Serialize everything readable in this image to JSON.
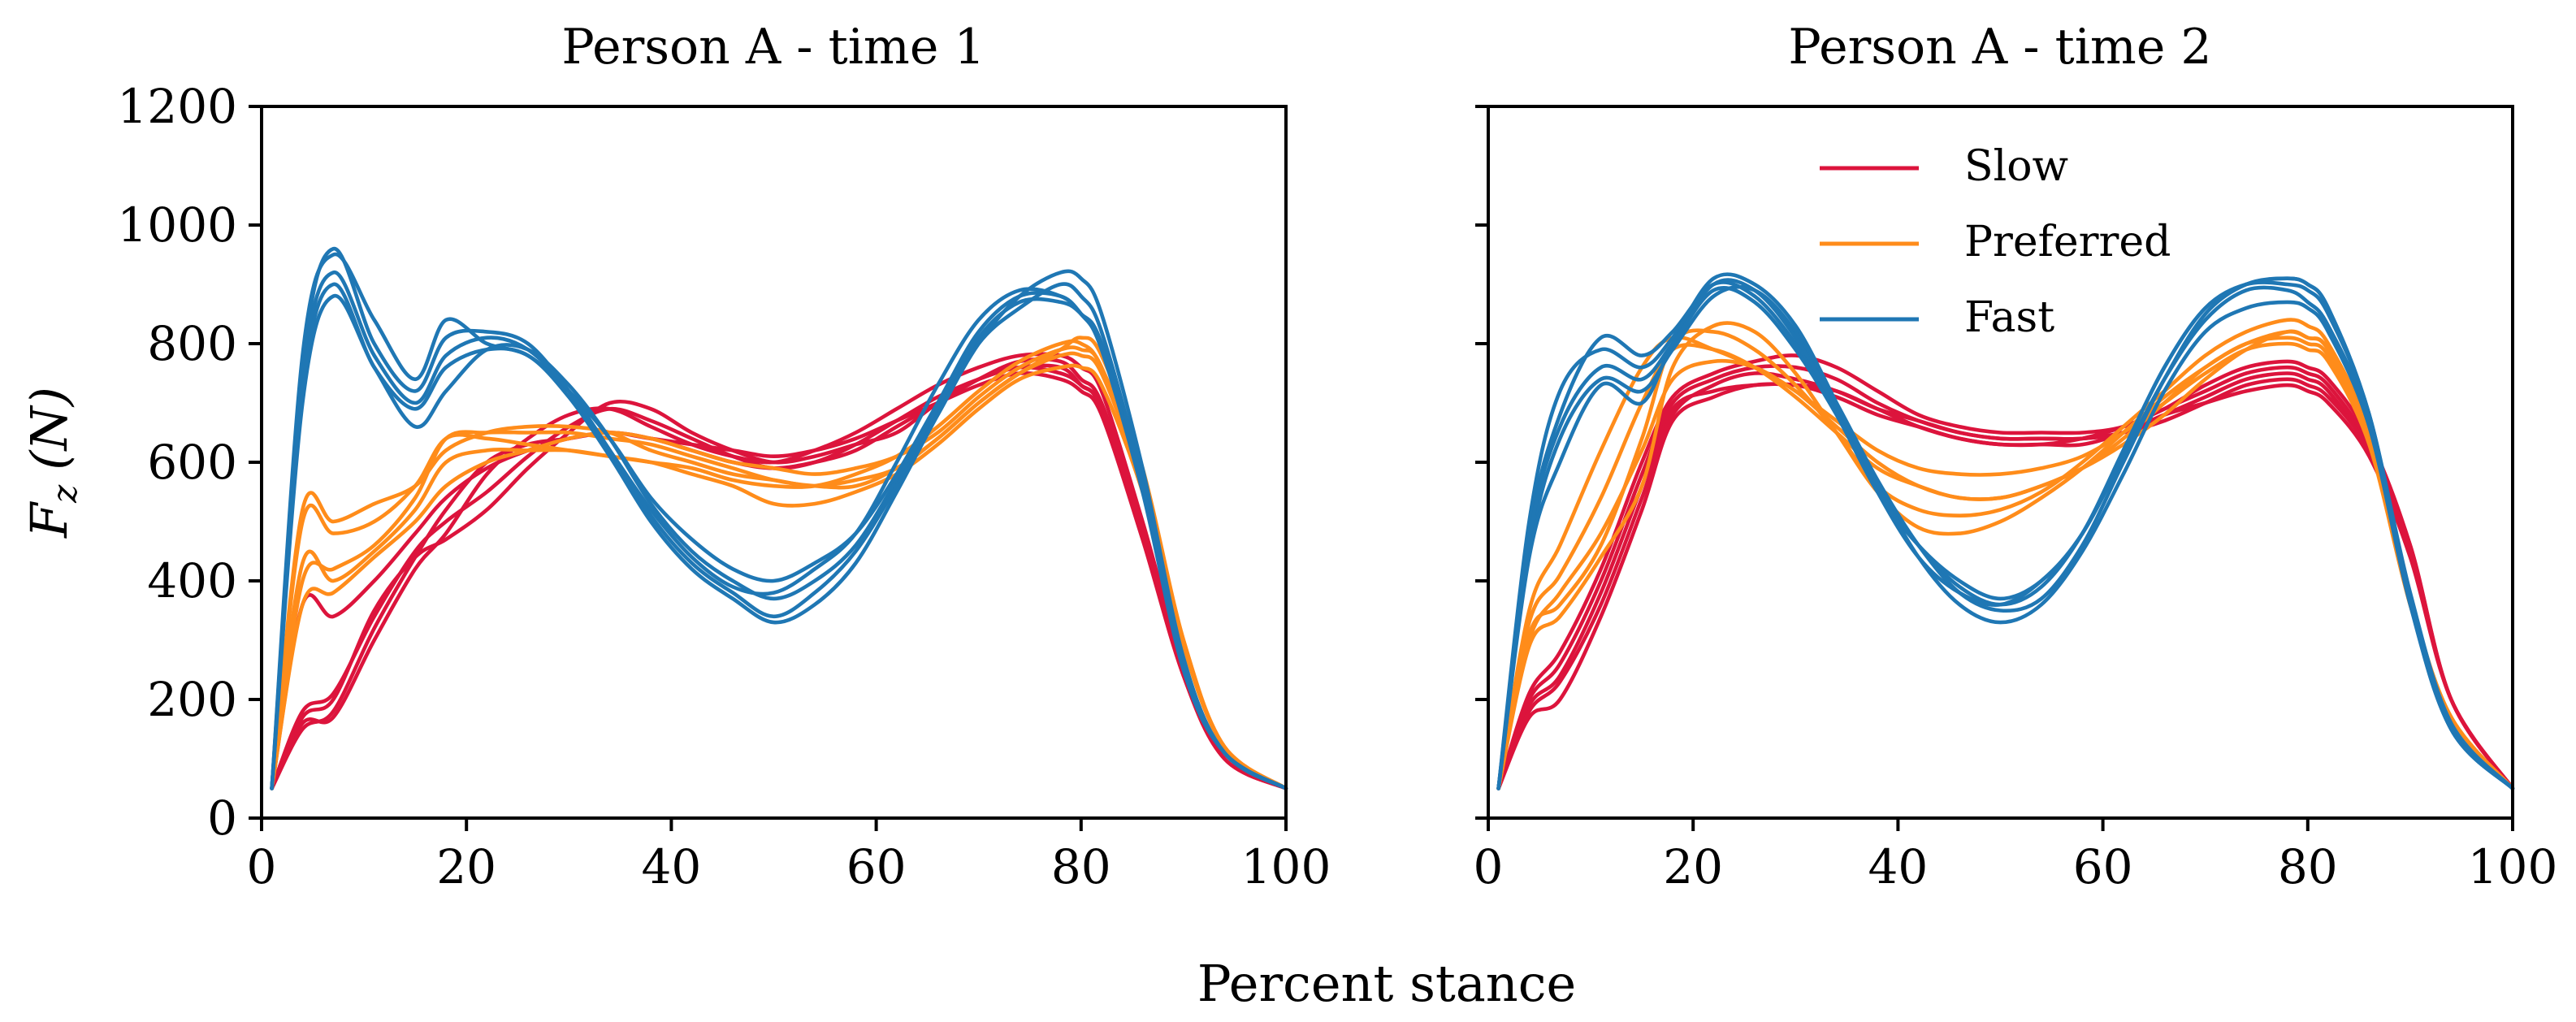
{
  "chart_data": {
    "type": "line",
    "xlabel": "Percent stance",
    "ylabel_symbol": "F",
    "ylabel_subscript": "z",
    "ylabel_unit": "(N)",
    "xlim": [
      0,
      100
    ],
    "ylim": [
      0,
      1200
    ],
    "xticks": [
      0,
      20,
      40,
      60,
      80,
      100
    ],
    "yticks": [
      0,
      200,
      400,
      600,
      800,
      1000,
      1200
    ],
    "x_grid": [
      1,
      4,
      7,
      11,
      15,
      18,
      22,
      26,
      30,
      34,
      38,
      42,
      46,
      50,
      54,
      58,
      62,
      66,
      70,
      74,
      78,
      80,
      82,
      86,
      90,
      94,
      100
    ],
    "legend": {
      "placement": "upper-center",
      "panel": 1,
      "entries": [
        {
          "label": "Slow",
          "color": "#dc143c"
        },
        {
          "label": "Preferred",
          "color": "#ff8c1a"
        },
        {
          "label": "Fast",
          "color": "#1f77b4"
        }
      ]
    },
    "panels": [
      {
        "title": "Person A - time 1",
        "series": [
          {
            "name": "Slow",
            "color": "#dc143c",
            "trials": [
              [
                50,
                160,
                170,
                300,
                420,
                480,
                580,
                640,
                680,
                690,
                660,
                630,
                610,
                600,
                620,
                650,
                690,
                730,
                760,
                780,
                780,
                760,
                720,
                500,
                260,
                110,
                50
              ],
              [
                50,
                150,
                180,
                320,
                440,
                520,
                600,
                630,
                640,
                650,
                640,
                630,
                620,
                610,
                620,
                640,
                670,
                700,
                730,
                750,
                740,
                720,
                680,
                470,
                240,
                100,
                50
              ],
              [
                50,
                170,
                200,
                350,
                440,
                470,
                520,
                590,
                650,
                700,
                690,
                650,
                620,
                600,
                610,
                630,
                650,
                700,
                740,
                760,
                760,
                730,
                690,
                480,
                250,
                110,
                50
              ],
              [
                50,
                360,
                340,
                400,
                480,
                540,
                590,
                620,
                640,
                650,
                640,
                620,
                600,
                590,
                600,
                620,
                660,
                700,
                740,
                770,
                770,
                740,
                700,
                490,
                250,
                110,
                50
              ],
              [
                50,
                180,
                210,
                340,
                450,
                500,
                550,
                610,
                660,
                690,
                670,
                640,
                610,
                590,
                600,
                630,
                670,
                710,
                740,
                760,
                750,
                730,
                690,
                480,
                240,
                100,
                50
              ]
            ]
          },
          {
            "name": "Preferred",
            "color": "#ff8c1a",
            "trials": [
              [
                50,
                500,
                480,
                500,
                560,
                640,
                640,
                630,
                620,
                610,
                600,
                590,
                570,
                560,
                560,
                580,
                610,
                660,
                720,
                770,
                800,
                800,
                760,
                580,
                300,
                120,
                50
              ],
              [
                50,
                400,
                420,
                460,
                540,
                640,
                650,
                650,
                650,
                640,
                630,
                610,
                590,
                570,
                560,
                560,
                590,
                640,
                700,
                750,
                790,
                810,
                780,
                590,
                300,
                120,
                50
              ],
              [
                50,
                430,
                400,
                450,
                520,
                600,
                620,
                620,
                620,
                610,
                600,
                580,
                560,
                530,
                530,
                550,
                580,
                630,
                690,
                740,
                760,
                760,
                730,
                550,
                290,
                120,
                50
              ],
              [
                50,
                360,
                380,
                440,
                500,
                560,
                600,
                620,
                640,
                650,
                640,
                620,
                600,
                590,
                580,
                590,
                610,
                650,
                710,
                760,
                790,
                790,
                760,
                560,
                290,
                120,
                50
              ],
              [
                50,
                520,
                500,
                530,
                560,
                620,
                650,
                660,
                660,
                650,
                620,
                600,
                580,
                570,
                560,
                570,
                590,
                640,
                700,
                750,
                780,
                780,
                750,
                560,
                290,
                120,
                50
              ]
            ]
          },
          {
            "name": "Fast",
            "color": "#1f77b4",
            "trials": [
              [
                50,
                780,
                950,
                840,
                740,
                840,
                800,
                780,
                720,
                640,
                540,
                470,
                420,
                400,
                430,
                480,
                580,
                700,
                820,
                880,
                880,
                850,
                800,
                560,
                260,
                110,
                50
              ],
              [
                50,
                760,
                960,
                800,
                720,
                810,
                820,
                800,
                720,
                620,
                520,
                440,
                390,
                380,
                420,
                480,
                600,
                730,
                840,
                890,
                880,
                850,
                790,
                550,
                250,
                110,
                50
              ],
              [
                50,
                700,
                880,
                760,
                660,
                720,
                790,
                790,
                730,
                640,
                530,
                450,
                400,
                370,
                400,
                460,
                570,
                690,
                810,
                870,
                870,
                850,
                800,
                560,
                260,
                110,
                50
              ],
              [
                50,
                740,
                920,
                780,
                700,
                780,
                810,
                790,
                720,
                620,
                510,
                430,
                380,
                340,
                380,
                450,
                560,
                680,
                800,
                860,
                900,
                880,
                820,
                570,
                260,
                110,
                50
              ],
              [
                50,
                720,
                900,
                760,
                690,
                760,
                790,
                780,
                710,
                610,
                500,
                420,
                370,
                330,
                360,
                430,
                550,
                680,
                800,
                880,
                920,
                910,
                850,
                590,
                270,
                110,
                50
              ]
            ]
          }
        ]
      },
      {
        "title": "Person A - time 2",
        "series": [
          {
            "name": "Slow",
            "color": "#dc143c",
            "trials": [
              [
                50,
                190,
                240,
                380,
                560,
                690,
                720,
                730,
                730,
                710,
                680,
                660,
                640,
                630,
                630,
                630,
                650,
                680,
                710,
                740,
                750,
                740,
                720,
                620,
                450,
                200,
                50
              ],
              [
                50,
                200,
                260,
                400,
                580,
                700,
                740,
                760,
                760,
                740,
                700,
                670,
                650,
                640,
                640,
                640,
                650,
                680,
                700,
                720,
                730,
                720,
                700,
                610,
                440,
                200,
                50
              ],
              [
                50,
                210,
                280,
                420,
                600,
                710,
                750,
                770,
                780,
                760,
                720,
                680,
                660,
                650,
                650,
                650,
                660,
                690,
                720,
                750,
                760,
                750,
                730,
                630,
                460,
                200,
                50
              ],
              [
                50,
                180,
                230,
                360,
                540,
                680,
                730,
                750,
                740,
                720,
                690,
                670,
                650,
                640,
                640,
                640,
                650,
                670,
                700,
                730,
                740,
                730,
                710,
                620,
                450,
                200,
                50
              ],
              [
                50,
                170,
                200,
                340,
                520,
                670,
                710,
                730,
                730,
                720,
                690,
                660,
                640,
                630,
                630,
                640,
                660,
                690,
                730,
                760,
                770,
                760,
                740,
                640,
                460,
                200,
                50
              ]
            ]
          },
          {
            "name": "Preferred",
            "color": "#ff8c1a",
            "trials": [
              [
                50,
                330,
                410,
                540,
                700,
                790,
                790,
                760,
                710,
                650,
                590,
                560,
                540,
                540,
                560,
                590,
                640,
                700,
                760,
                800,
                820,
                810,
                790,
                640,
                360,
                170,
                50
              ],
              [
                50,
                310,
                360,
                460,
                640,
                800,
                820,
                790,
                730,
                650,
                560,
                520,
                510,
                520,
                550,
                600,
                660,
                720,
                780,
                820,
                840,
                830,
                800,
                650,
                360,
                170,
                50
              ],
              [
                50,
                290,
                340,
                440,
                560,
                760,
                830,
                820,
                750,
                650,
                550,
                490,
                480,
                500,
                540,
                590,
                650,
                710,
                760,
                800,
                810,
                800,
                780,
                640,
                360,
                170,
                50
              ],
              [
                50,
                350,
                460,
                620,
                760,
                810,
                790,
                760,
                720,
                660,
                600,
                560,
                540,
                540,
                560,
                590,
                630,
                680,
                740,
                790,
                820,
                810,
                790,
                650,
                370,
                170,
                50
              ],
              [
                50,
                300,
                380,
                480,
                620,
                740,
                770,
                760,
                720,
                670,
                620,
                590,
                580,
                580,
                590,
                610,
                650,
                700,
                750,
                790,
                800,
                790,
                770,
                630,
                360,
                170,
                50
              ]
            ]
          },
          {
            "name": "Fast",
            "color": "#1f77b4",
            "trials": [
              [
                50,
                480,
                680,
                810,
                780,
                820,
                900,
                880,
                800,
                690,
                560,
                460,
                390,
                360,
                390,
                480,
                620,
                760,
                860,
                900,
                910,
                900,
                860,
                680,
                380,
                160,
                50
              ],
              [
                50,
                450,
                640,
                740,
                720,
                790,
                880,
                890,
                820,
                700,
                570,
                460,
                380,
                350,
                370,
                460,
                600,
                740,
                850,
                900,
                910,
                900,
                860,
                680,
                370,
                150,
                50
              ],
              [
                50,
                440,
                600,
                730,
                700,
                800,
                900,
                890,
                810,
                690,
                550,
                440,
                380,
                360,
                400,
                480,
                620,
                760,
                860,
                900,
                900,
                890,
                850,
                680,
                370,
                150,
                50
              ],
              [
                50,
                500,
                720,
                790,
                760,
                810,
                910,
                900,
                830,
                700,
                560,
                440,
                360,
                330,
                360,
                450,
                580,
                720,
                820,
                860,
                870,
                860,
                820,
                660,
                360,
                150,
                50
              ],
              [
                50,
                470,
                660,
                760,
                740,
                800,
                890,
                870,
                790,
                680,
                550,
                460,
                400,
                370,
                400,
                480,
                610,
                740,
                840,
                890,
                890,
                870,
                830,
                670,
                370,
                150,
                50
              ]
            ]
          }
        ]
      }
    ]
  }
}
